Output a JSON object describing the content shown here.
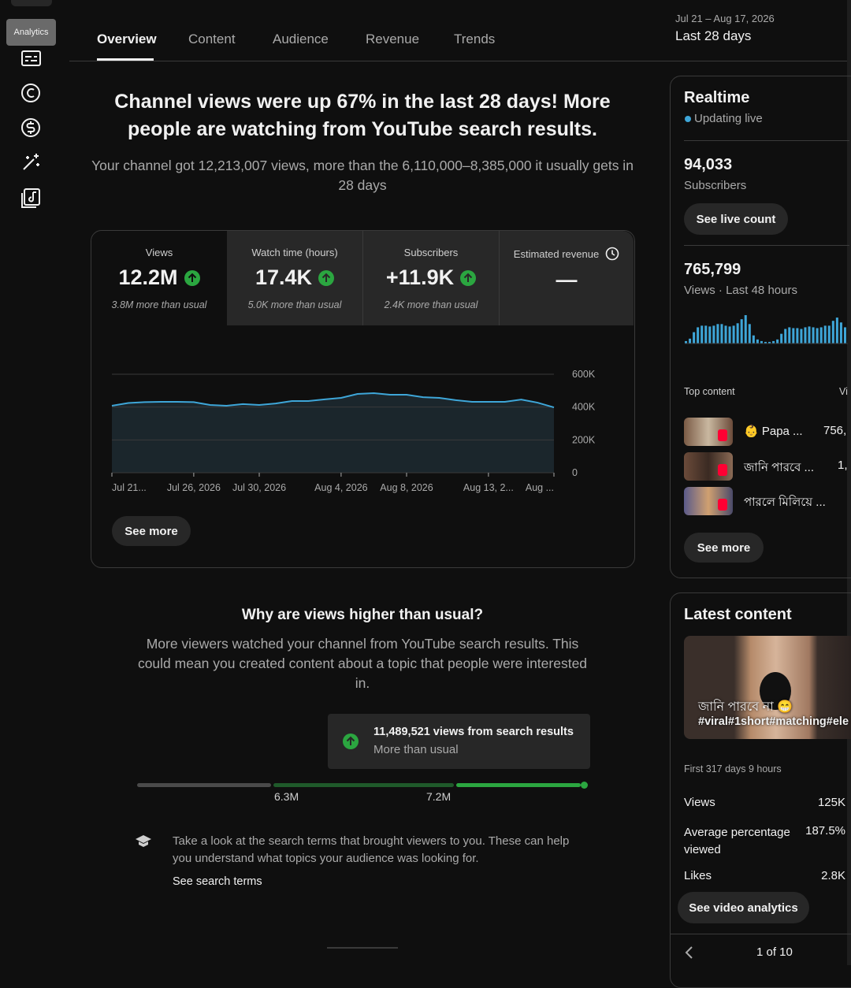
{
  "sidebar": {
    "tooltip": "Analytics"
  },
  "tabs": [
    "Overview",
    "Content",
    "Audience",
    "Revenue",
    "Trends"
  ],
  "date_range": {
    "dates": "Jul 21 – Aug 17, 2026",
    "label": "Last 28 days"
  },
  "headline": "Channel views were up 67% in the last 28 days! More people are watching from YouTube search results.",
  "subhead": "Your channel got 12,213,007 views, more than the 6,110,000–8,385,000 it usually gets in 28 days",
  "metrics": [
    {
      "label": "Views",
      "value": "12.2M",
      "note": "3.8M more than usual"
    },
    {
      "label": "Watch time (hours)",
      "value": "17.4K",
      "note": "5.0K more than usual"
    },
    {
      "label": "Subscribers",
      "value": "+11.9K",
      "note": "2.4K more than usual"
    },
    {
      "label": "Estimated revenue",
      "value": "—"
    }
  ],
  "chart_data": [
    {
      "type": "area",
      "categories": [
        "Jul 21...",
        null,
        null,
        null,
        null,
        "Jul 26, 2026",
        null,
        null,
        null,
        "Jul 30, 2026",
        null,
        null,
        null,
        null,
        "Aug 4, 2026",
        null,
        null,
        null,
        "Aug 8, 2026",
        null,
        null,
        null,
        null,
        "Aug 13, 2...",
        null,
        null,
        null,
        "Aug ..."
      ],
      "values": [
        408000,
        425000,
        430000,
        432000,
        432000,
        430000,
        413000,
        408000,
        418000,
        413000,
        422000,
        437000,
        437000,
        447000,
        456000,
        480000,
        485000,
        475000,
        475000,
        460000,
        456000,
        442000,
        432000,
        432000,
        432000,
        446000,
        427000,
        398000
      ],
      "color": "#3ea6d8",
      "ylim": [
        0,
        600000
      ],
      "yticks": [
        0,
        {
          "value": 200000,
          "label": "200K"
        },
        {
          "value": 400000,
          "label": "400K"
        },
        {
          "value": 600000,
          "label": "600K"
        }
      ],
      "grid": true
    },
    {
      "type": "bar",
      "values": [
        3,
        6,
        14,
        20,
        22,
        22,
        21,
        22,
        24,
        24,
        22,
        21,
        22,
        25,
        30,
        35,
        24,
        10,
        5,
        3,
        2,
        2,
        3,
        5,
        12,
        18,
        20,
        19,
        19,
        18,
        20,
        21,
        20,
        19,
        20,
        22,
        22,
        28,
        32,
        26,
        20
      ],
      "color": "#3ea6d8"
    }
  ],
  "see_more": "See more",
  "why": {
    "title": "Why are views higher than usual?",
    "text": "More viewers watched your channel from YouTube search results. This could mean you created content about a topic that people were interested in.",
    "callout": {
      "title": "11,489,521 views from search results",
      "subtitle": "More than usual"
    },
    "range_labels": [
      "6.3M",
      "7.2M"
    ],
    "tip": "Take a look at the search terms that brought viewers to you. These can help you understand what topics your audience was looking for.",
    "link": "See search terms"
  },
  "realtime": {
    "title": "Realtime",
    "status": "Updating live",
    "subscribers": {
      "value": "94,033",
      "label": "Subscribers"
    },
    "live_button": "See live count",
    "views": {
      "value": "765,799",
      "label": "Views · Last 48 hours"
    },
    "top_content_header": "Top content",
    "top_content_column": "Vi",
    "top_content": [
      {
        "title": "👶 Papa ...",
        "views": "756,"
      },
      {
        "title": "জানি পারবে ...",
        "views": "1,"
      },
      {
        "title": "পারলে মিলিয়ে ...",
        "views": ""
      }
    ],
    "see_more": "See more"
  },
  "latest": {
    "title": "Latest content",
    "video_title": "জানি পারবে না 😁",
    "video_tags": "#viral#1short#matching#ele",
    "period": "First 317 days 9 hours",
    "stats": [
      {
        "label": "Views",
        "value": "125K"
      },
      {
        "label": "Average percentage viewed",
        "value": "187.5%"
      },
      {
        "label": "Likes",
        "value": "2.8K"
      }
    ],
    "button": "See video analytics",
    "pager": "1 of 10"
  }
}
